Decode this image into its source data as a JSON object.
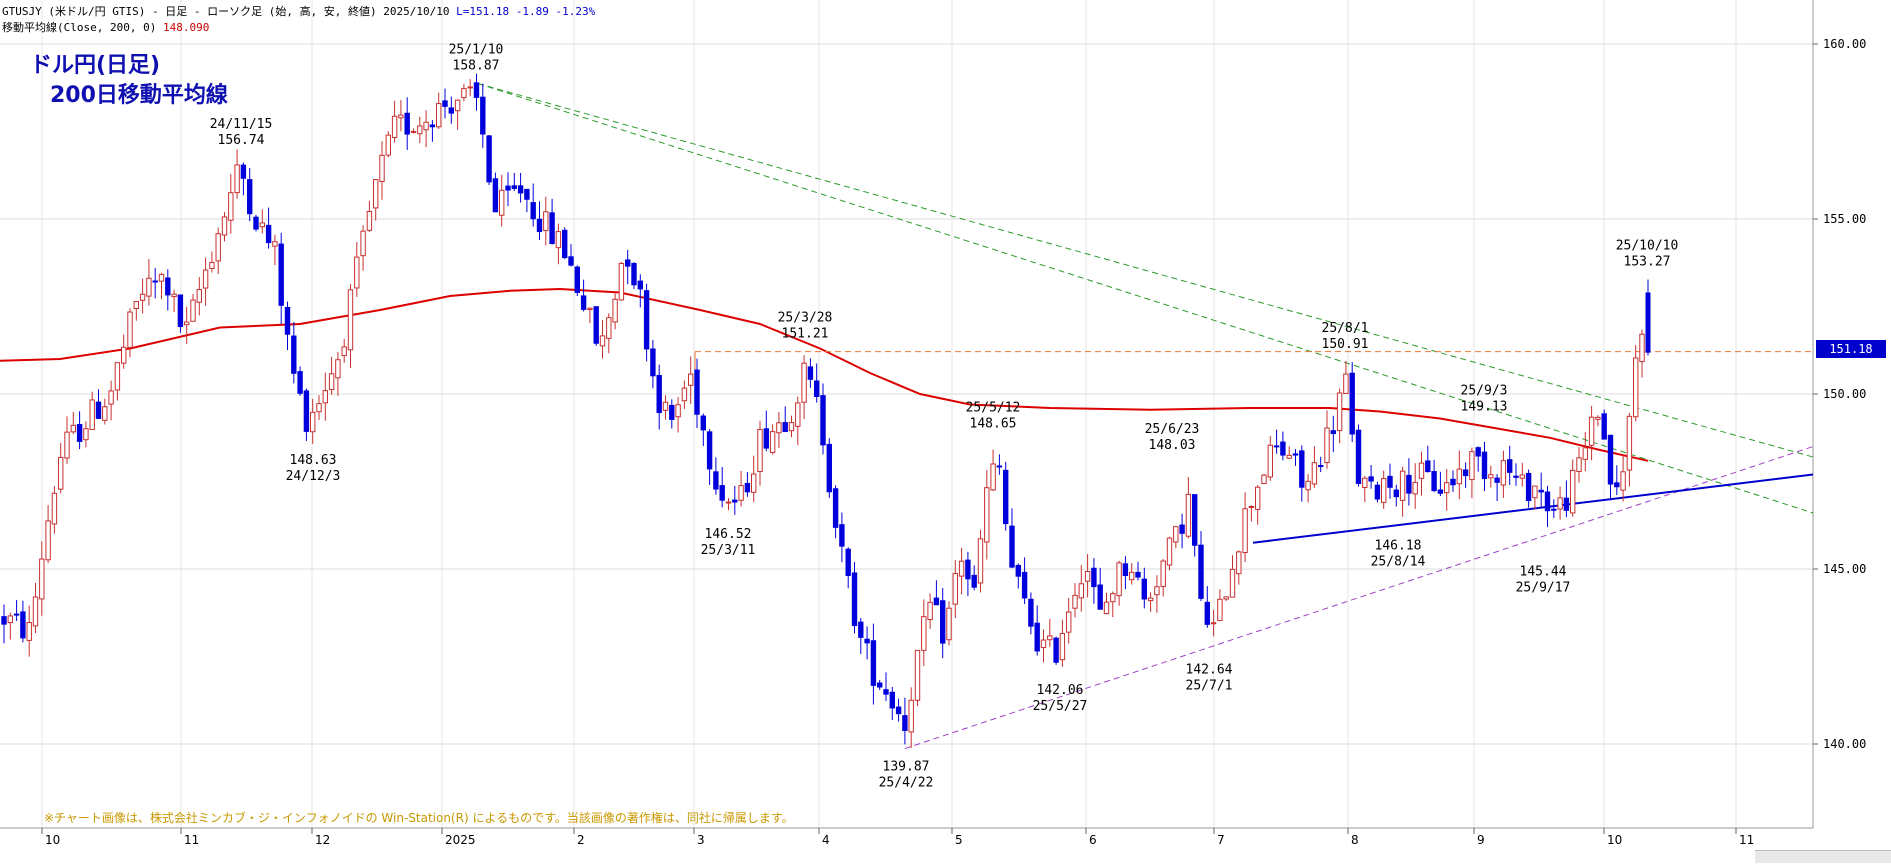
{
  "header": {
    "line1_prefix": "GTUSJY (米ドル/円 GTIS) - 日足 - ローソク足 (始, 高, 安, 終値)  2025/10/10  ",
    "line1_l": "L=151.18",
    "line1_change": "-1.89",
    "line1_pct": "-1.23%",
    "line2_prefix": "移動平均線(Close, 200, 0) ",
    "line2_value": "148.090"
  },
  "title_line1": "ドル円(日足)",
  "title_line2": "200日移動平均線",
  "copyright": "※チャート画像は、株式会社ミンカブ・ジ・インフォノイドの Win-Station(R) によるものです。当該画像の著作権は、同社に帰属します。",
  "price_box": "151.18",
  "colors": {
    "up_candle": "#c83030",
    "down_candle": "#0000dd",
    "ma": "#dd0000",
    "support": "#0000cc",
    "trend_green": "#2a9a2a",
    "trend_purple": "#a040c8",
    "level_orange": "#ee7733",
    "title": "#1010b0"
  },
  "chart_data": {
    "type": "candlestick",
    "ylim": [
      137.5,
      162
    ],
    "y_ticks": [
      "160.00",
      "155.00",
      "150.00",
      "145.00",
      "140.00"
    ],
    "x_ticks": [
      "10",
      "11",
      "12",
      "2025",
      "2",
      "3",
      "4",
      "5",
      "6",
      "7",
      "8",
      "9",
      "10",
      "11"
    ],
    "moving_average": {
      "name": "移動平均線(Close, 200, 0)",
      "last": 148.09
    },
    "annotations": [
      {
        "date": "24/11/15",
        "value": "156.74",
        "position": "above"
      },
      {
        "date": "24/12/3",
        "value": "148.63",
        "position": "below"
      },
      {
        "date": "25/1/10",
        "value": "158.87",
        "position": "above"
      },
      {
        "date": "25/3/11",
        "value": "146.52",
        "position": "below"
      },
      {
        "date": "25/3/28",
        "value": "151.21",
        "position": "above"
      },
      {
        "date": "25/4/22",
        "value": "139.87",
        "position": "below"
      },
      {
        "date": "25/5/12",
        "value": "148.65",
        "position": "above"
      },
      {
        "date": "25/5/27",
        "value": "142.06",
        "position": "below"
      },
      {
        "date": "25/6/23",
        "value": "148.03",
        "position": "above"
      },
      {
        "date": "25/7/1",
        "value": "142.64",
        "position": "below"
      },
      {
        "date": "25/8/1",
        "value": "150.91",
        "position": "above"
      },
      {
        "date": "25/8/14",
        "value": "146.18",
        "position": "below"
      },
      {
        "date": "25/9/3",
        "value": "149.13",
        "position": "above"
      },
      {
        "date": "25/9/17",
        "value": "145.44",
        "position": "below"
      },
      {
        "date": "25/10/10",
        "value": "153.27",
        "position": "above"
      }
    ],
    "last_close": 151.18
  }
}
